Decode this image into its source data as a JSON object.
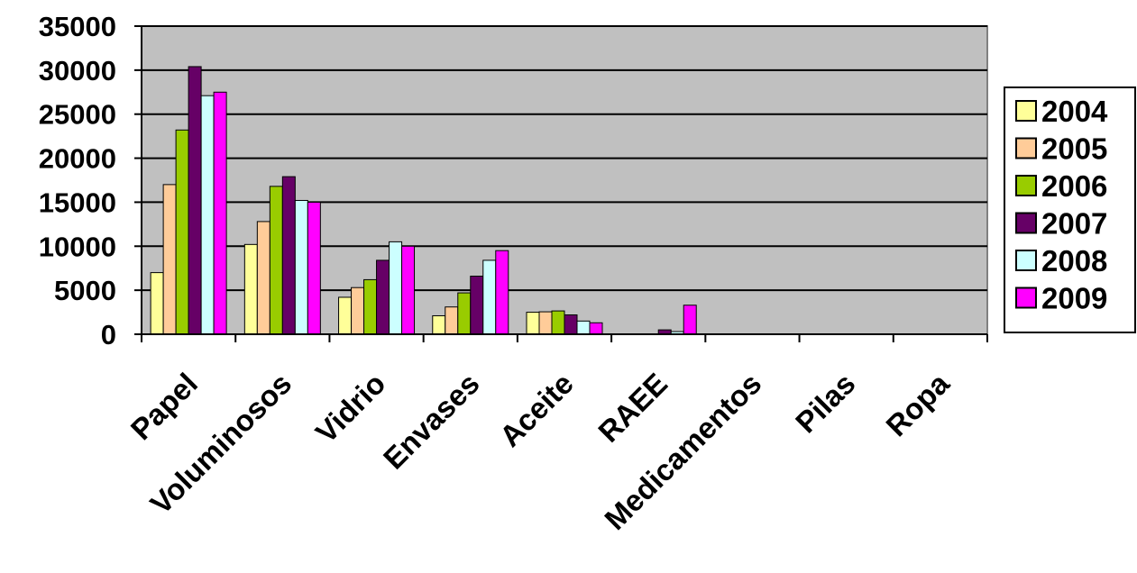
{
  "chart_data": {
    "type": "bar",
    "categories": [
      "Papel",
      "Voluminosos",
      "Vidrio",
      "Envases",
      "Aceite",
      "RAEE",
      "Medicamentos",
      "Pilas",
      "Ropa"
    ],
    "series": [
      {
        "name": "2004",
        "color": "#FFFF99",
        "values": [
          7000,
          10200,
          4200,
          2100,
          2500,
          0,
          0,
          0,
          0
        ]
      },
      {
        "name": "2005",
        "color": "#FFCC99",
        "values": [
          17000,
          12800,
          5300,
          3100,
          2550,
          0,
          0,
          0,
          0
        ]
      },
      {
        "name": "2006",
        "color": "#99CC00",
        "values": [
          23200,
          16800,
          6200,
          4700,
          2650,
          0,
          0,
          0,
          0
        ]
      },
      {
        "name": "2007",
        "color": "#660066",
        "values": [
          30400,
          17900,
          8400,
          6600,
          2200,
          500,
          50,
          30,
          20
        ]
      },
      {
        "name": "2008",
        "color": "#CCFFFF",
        "values": [
          27100,
          15200,
          10500,
          8400,
          1500,
          300,
          50,
          30,
          0
        ]
      },
      {
        "name": "2009",
        "color": "#FF00FF",
        "values": [
          27500,
          15000,
          10000,
          9500,
          1300,
          3300,
          50,
          0,
          0
        ]
      }
    ],
    "yticks": [
      "0",
      "5000",
      "10000",
      "15000",
      "20000",
      "25000",
      "30000",
      "35000"
    ],
    "ylim": [
      0,
      35000
    ],
    "title": "",
    "xlabel": "",
    "ylabel": "",
    "grid": true,
    "legend_position": "right",
    "plot_background": "#C0C0C0"
  }
}
